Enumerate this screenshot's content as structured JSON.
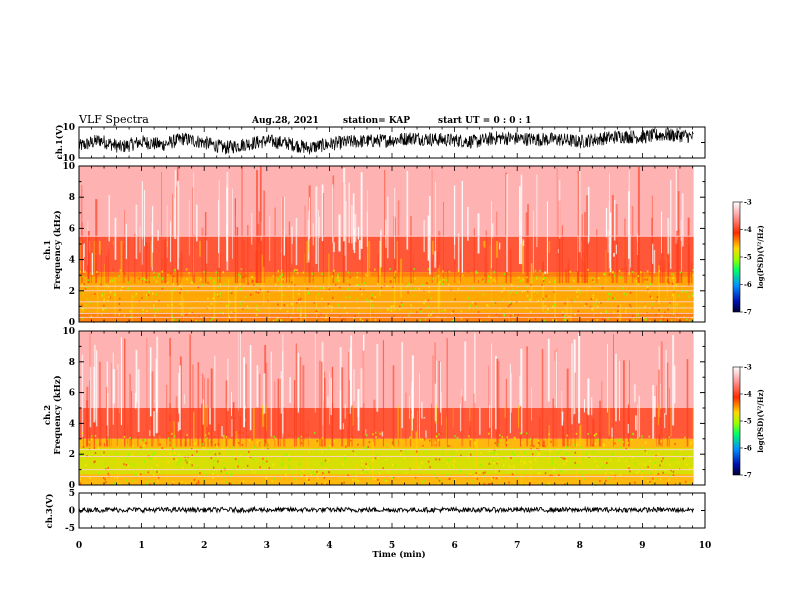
{
  "header": {
    "title": "VLF Spectra",
    "date": "Aug.28, 2021",
    "station": "station= KAP",
    "start_ut": "start UT =  0 : 0 : 1"
  },
  "colorbar": {
    "label": "log(PSD)(V²/Hz)",
    "ticks": [
      "-3",
      "-4",
      "-5",
      "-6",
      "-7"
    ],
    "colors": [
      "#ffffff",
      "#ff9a9a",
      "#ff2a00",
      "#ffd800",
      "#9cff00",
      "#00ff66",
      "#0090ff",
      "#0010b0",
      "#000033"
    ]
  },
  "chart_data": [
    {
      "type": "line",
      "panel": "ch1-waveform",
      "ylabel": "ch.1(V)",
      "ylim": [
        -10,
        10
      ],
      "yticks": [
        "10",
        "-10"
      ],
      "xlim": [
        0,
        10
      ],
      "series": [
        {
          "values": [
            -2.5,
            1.5,
            -3.0,
            0.5,
            -1.5,
            2.5,
            0.0,
            -3.5,
            -1.0,
            1.0,
            -0.5,
            -3.5,
            -1.0,
            0.5,
            1.0,
            1.5,
            3.0,
            2.0,
            1.5,
            0.5,
            3.0,
            2.5,
            2.0,
            2.0,
            0.5,
            2.5,
            4.0,
            3.5,
            5.0,
            4.5,
            2.0
          ]
        }
      ],
      "line_color": "#000000"
    },
    {
      "type": "heatmap",
      "panel": "ch1-spectrogram",
      "ylabel": "ch.1",
      "ylabel2": "Frequency (kHz)",
      "ylim": [
        0,
        10
      ],
      "yticks": [
        "0",
        "2",
        "4",
        "6",
        "8",
        "10"
      ],
      "xlim": [
        0,
        10
      ],
      "data_end_min": 9.82,
      "bands_khz": [
        {
          "from": 0,
          "to": 3.2,
          "level": "yellow-orange"
        },
        {
          "from": 3.2,
          "to": 5.5,
          "level": "red"
        },
        {
          "from": 5.5,
          "to": 10,
          "level": "light-red"
        }
      ],
      "lines_khz": [
        0.3,
        0.55,
        0.9,
        1.3,
        2.0,
        2.3,
        5.5
      ]
    },
    {
      "type": "heatmap",
      "panel": "ch2-spectrogram",
      "ylabel": "ch.2",
      "ylabel2": "Frequency (kHz)",
      "ylim": [
        0,
        10
      ],
      "yticks": [
        "0",
        "2",
        "4",
        "6",
        "8",
        "10"
      ],
      "xlim": [
        0,
        10
      ],
      "data_end_min": 9.82,
      "bands_khz": [
        {
          "from": 0,
          "to": 3.0,
          "level": "green-yellow"
        },
        {
          "from": 3.0,
          "to": 5.0,
          "level": "red"
        },
        {
          "from": 5.0,
          "to": 10,
          "level": "light-red"
        }
      ],
      "lines_khz": [
        0.55,
        1.0,
        1.85,
        2.3
      ]
    },
    {
      "type": "line",
      "panel": "ch3-waveform",
      "ylabel": "ch.3(V)",
      "ylim": [
        -5,
        5
      ],
      "yticks": [
        "5",
        "0",
        "-5"
      ],
      "xlim": [
        0,
        10
      ],
      "series": [
        {
          "values": [
            0.2,
            0.2,
            0.2,
            0.2,
            0.2,
            0.2,
            0.2,
            0.2,
            0.2,
            0.2,
            0.2
          ]
        }
      ],
      "line_color": "#000000"
    }
  ],
  "xaxis": {
    "label": "Time (min)",
    "ticks": [
      "0",
      "1",
      "2",
      "3",
      "4",
      "5",
      "6",
      "7",
      "8",
      "9",
      "10"
    ]
  }
}
